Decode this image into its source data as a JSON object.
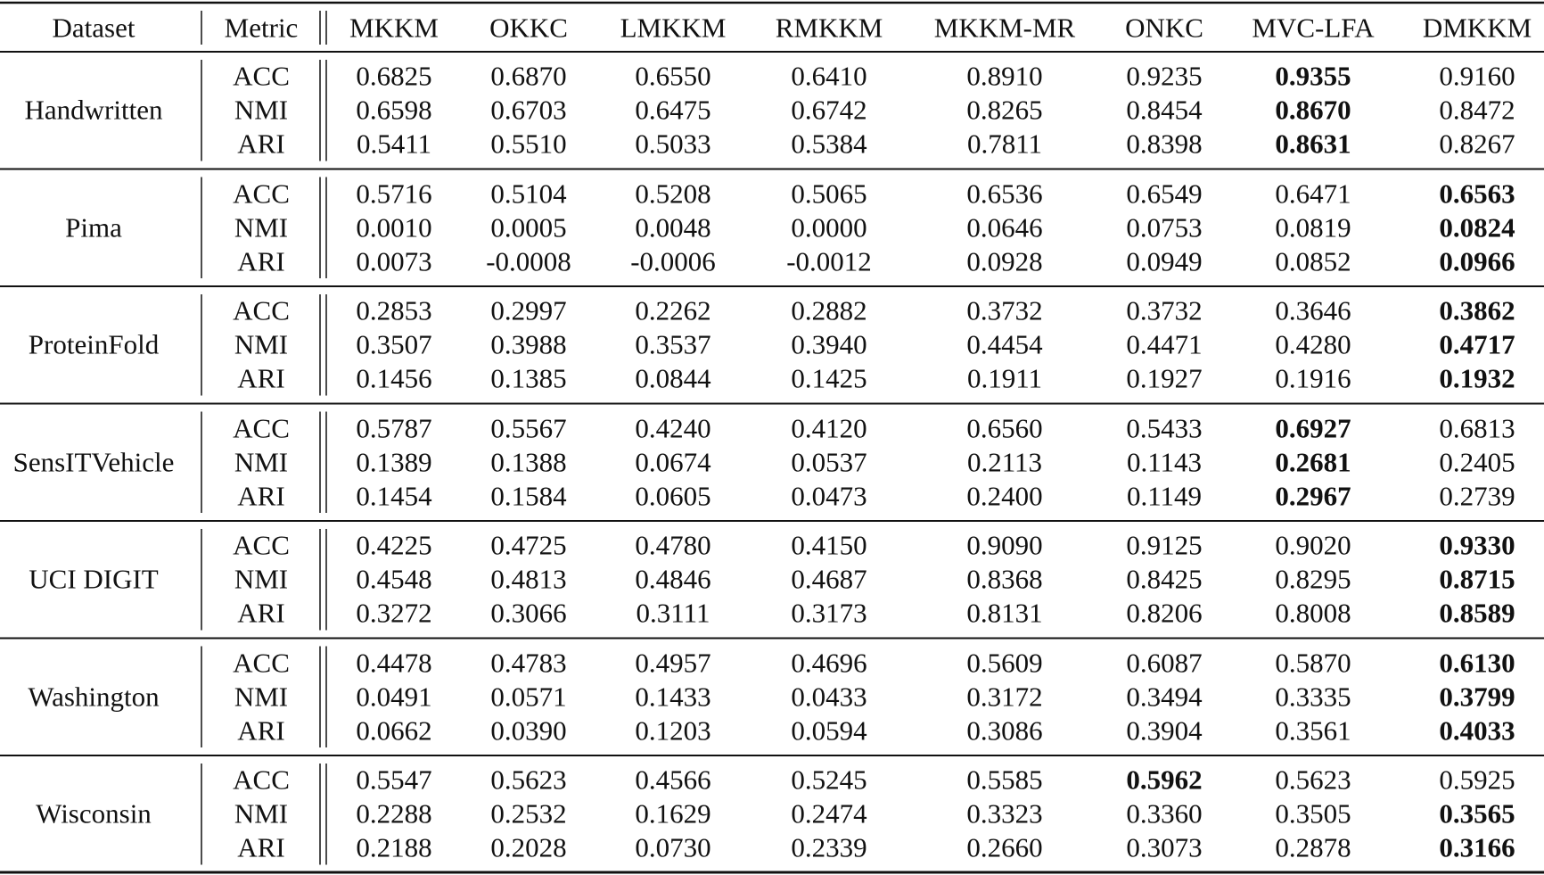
{
  "table": {
    "header": [
      "Dataset",
      "Metric",
      "MKKM",
      "OKKC",
      "LMKKM",
      "RMKKM",
      "MKKM-MR",
      "ONKC",
      "MVC-LFA",
      "DMKKM"
    ],
    "groups": [
      {
        "dataset": "Handwritten",
        "rows": [
          {
            "metric": "ACC",
            "values": [
              "0.6825",
              "0.6870",
              "0.6550",
              "0.6410",
              "0.8910",
              "0.9235",
              "0.9355",
              "0.9160"
            ],
            "best": 6
          },
          {
            "metric": "NMI",
            "values": [
              "0.6598",
              "0.6703",
              "0.6475",
              "0.6742",
              "0.8265",
              "0.8454",
              "0.8670",
              "0.8472"
            ],
            "best": 6
          },
          {
            "metric": "ARI",
            "values": [
              "0.5411",
              "0.5510",
              "0.5033",
              "0.5384",
              "0.7811",
              "0.8398",
              "0.8631",
              "0.8267"
            ],
            "best": 6
          }
        ]
      },
      {
        "dataset": "Pima",
        "rows": [
          {
            "metric": "ACC",
            "values": [
              "0.5716",
              "0.5104",
              "0.5208",
              "0.5065",
              "0.6536",
              "0.6549",
              "0.6471",
              "0.6563"
            ],
            "best": 7
          },
          {
            "metric": "NMI",
            "values": [
              "0.0010",
              "0.0005",
              "0.0048",
              "0.0000",
              "0.0646",
              "0.0753",
              "0.0819",
              "0.0824"
            ],
            "best": 7
          },
          {
            "metric": "ARI",
            "values": [
              "0.0073",
              "-0.0008",
              "-0.0006",
              "-0.0012",
              "0.0928",
              "0.0949",
              "0.0852",
              "0.0966"
            ],
            "best": 7
          }
        ]
      },
      {
        "dataset": "ProteinFold",
        "rows": [
          {
            "metric": "ACC",
            "values": [
              "0.2853",
              "0.2997",
              "0.2262",
              "0.2882",
              "0.3732",
              "0.3732",
              "0.3646",
              "0.3862"
            ],
            "best": 7
          },
          {
            "metric": "NMI",
            "values": [
              "0.3507",
              "0.3988",
              "0.3537",
              "0.3940",
              "0.4454",
              "0.4471",
              "0.4280",
              "0.4717"
            ],
            "best": 7
          },
          {
            "metric": "ARI",
            "values": [
              "0.1456",
              "0.1385",
              "0.0844",
              "0.1425",
              "0.1911",
              "0.1927",
              "0.1916",
              "0.1932"
            ],
            "best": 7
          }
        ]
      },
      {
        "dataset": "SensITVehicle",
        "rows": [
          {
            "metric": "ACC",
            "values": [
              "0.5787",
              "0.5567",
              "0.4240",
              "0.4120",
              "0.6560",
              "0.5433",
              "0.6927",
              "0.6813"
            ],
            "best": 6
          },
          {
            "metric": "NMI",
            "values": [
              "0.1389",
              "0.1388",
              "0.0674",
              "0.0537",
              "0.2113",
              "0.1143",
              "0.2681",
              "0.2405"
            ],
            "best": 6
          },
          {
            "metric": "ARI",
            "values": [
              "0.1454",
              "0.1584",
              "0.0605",
              "0.0473",
              "0.2400",
              "0.1149",
              "0.2967",
              "0.2739"
            ],
            "best": 6
          }
        ]
      },
      {
        "dataset": "UCI DIGIT",
        "rows": [
          {
            "metric": "ACC",
            "values": [
              "0.4225",
              "0.4725",
              "0.4780",
              "0.4150",
              "0.9090",
              "0.9125",
              "0.9020",
              "0.9330"
            ],
            "best": 7
          },
          {
            "metric": "NMI",
            "values": [
              "0.4548",
              "0.4813",
              "0.4846",
              "0.4687",
              "0.8368",
              "0.8425",
              "0.8295",
              "0.8715"
            ],
            "best": 7
          },
          {
            "metric": "ARI",
            "values": [
              "0.3272",
              "0.3066",
              "0.3111",
              "0.3173",
              "0.8131",
              "0.8206",
              "0.8008",
              "0.8589"
            ],
            "best": 7
          }
        ]
      },
      {
        "dataset": "Washington",
        "rows": [
          {
            "metric": "ACC",
            "values": [
              "0.4478",
              "0.4783",
              "0.4957",
              "0.4696",
              "0.5609",
              "0.6087",
              "0.5870",
              "0.6130"
            ],
            "best": 7
          },
          {
            "metric": "NMI",
            "values": [
              "0.0491",
              "0.0571",
              "0.1433",
              "0.0433",
              "0.3172",
              "0.3494",
              "0.3335",
              "0.3799"
            ],
            "best": 7
          },
          {
            "metric": "ARI",
            "values": [
              "0.0662",
              "0.0390",
              "0.1203",
              "0.0594",
              "0.3086",
              "0.3904",
              "0.3561",
              "0.4033"
            ],
            "best": 7
          }
        ]
      },
      {
        "dataset": "Wisconsin",
        "rows": [
          {
            "metric": "ACC",
            "values": [
              "0.5547",
              "0.5623",
              "0.4566",
              "0.5245",
              "0.5585",
              "0.5962",
              "0.5623",
              "0.5925"
            ],
            "best": 5
          },
          {
            "metric": "NMI",
            "values": [
              "0.2288",
              "0.2532",
              "0.1629",
              "0.2474",
              "0.3323",
              "0.3360",
              "0.3505",
              "0.3565"
            ],
            "best": 7
          },
          {
            "metric": "ARI",
            "values": [
              "0.2188",
              "0.2028",
              "0.0730",
              "0.2339",
              "0.2660",
              "0.3073",
              "0.2878",
              "0.3166"
            ],
            "best": 7
          }
        ]
      }
    ]
  }
}
